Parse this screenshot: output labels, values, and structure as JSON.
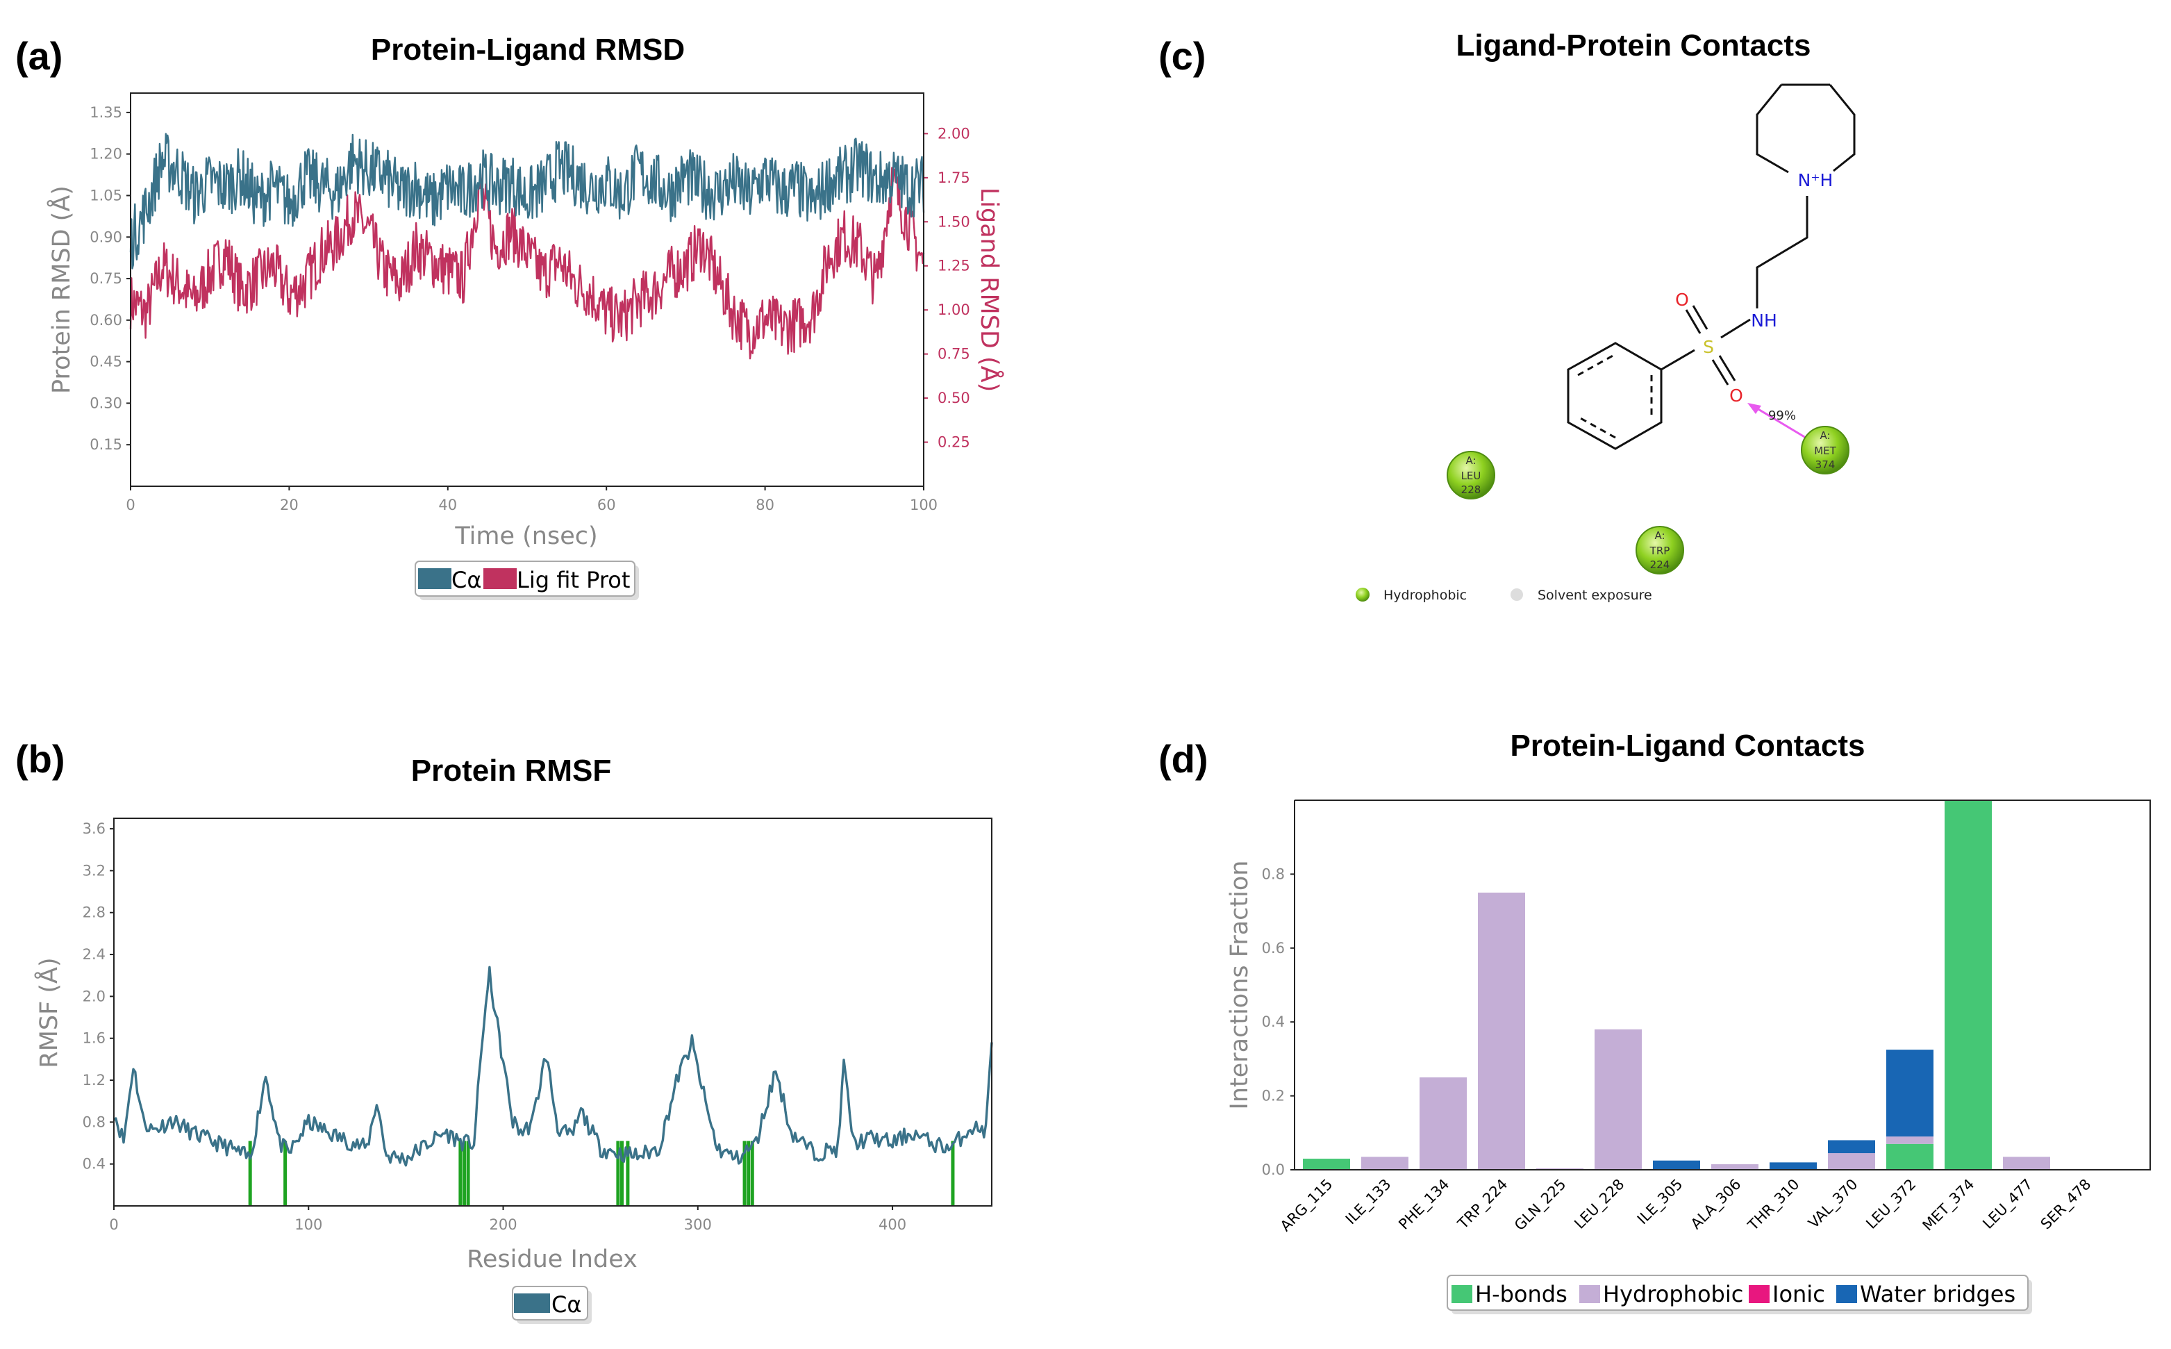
{
  "colors": {
    "ca": "#3a7289",
    "lig": "#c0325f",
    "hbond": "#45c775",
    "hydrophobic": "#c4aed6",
    "ionic": "#e8177f",
    "water": "#1866b4",
    "rmsf_marker": "#1ea321",
    "hydrophobic_dot": "#8fd121",
    "salt_arrow": "#e85aef",
    "n_atom": "#1a1ad6",
    "o_atom": "#e8242a",
    "s_atom": "#c9c22b"
  },
  "panels": {
    "a": "(a)",
    "b": "(b)",
    "c": "(c)",
    "d": "(d)"
  },
  "chart_data": [
    {
      "id": "a",
      "type": "line",
      "title": "Protein-Ligand RMSD",
      "xlabel": "Time (nsec)",
      "ylabel": "Protein RMSD (Å)",
      "y2label": "Ligand RMSD (Å)",
      "xlim": [
        0,
        100
      ],
      "ylim": [
        0,
        1.42
      ],
      "y2lim": [
        0,
        2.23
      ],
      "xticks": [
        0,
        20,
        40,
        60,
        80,
        100
      ],
      "yticks": [
        "0.15",
        "0.30",
        "0.45",
        "0.60",
        "0.75",
        "0.90",
        "1.05",
        "1.20",
        "1.35"
      ],
      "y2ticks": [
        "0.25",
        "0.50",
        "0.75",
        "1.00",
        "1.25",
        "1.50",
        "1.75",
        "2.00"
      ],
      "legend": [
        "Cα",
        "Lig fit Prot"
      ],
      "series": [
        {
          "name": "Cα",
          "axis": "left",
          "x": [
            0,
            2,
            4,
            6,
            8,
            10,
            12,
            14,
            16,
            18,
            20,
            22,
            24,
            26,
            28,
            30,
            32,
            34,
            36,
            38,
            40,
            42,
            44,
            46,
            48,
            50,
            52,
            54,
            56,
            58,
            60,
            62,
            64,
            66,
            68,
            70,
            72,
            74,
            76,
            78,
            80,
            82,
            84,
            86,
            88,
            90,
            92,
            94,
            96,
            98,
            100
          ],
          "values": [
            0.88,
            1.0,
            1.18,
            1.14,
            1.05,
            1.1,
            1.08,
            1.12,
            1.03,
            1.08,
            1.02,
            1.12,
            1.09,
            1.06,
            1.18,
            1.14,
            1.12,
            1.06,
            1.09,
            1.02,
            1.08,
            1.05,
            1.12,
            1.08,
            1.1,
            1.04,
            1.08,
            1.15,
            1.12,
            1.08,
            1.1,
            1.05,
            1.14,
            1.1,
            1.06,
            1.12,
            1.08,
            1.06,
            1.1,
            1.05,
            1.12,
            1.06,
            1.08,
            1.02,
            1.1,
            1.12,
            1.16,
            1.1,
            1.12,
            1.08,
            1.09
          ]
        },
        {
          "name": "Lig fit Prot",
          "axis": "right",
          "x": [
            0,
            2,
            4,
            6,
            8,
            10,
            12,
            14,
            16,
            18,
            20,
            22,
            24,
            26,
            28,
            30,
            32,
            34,
            36,
            38,
            40,
            42,
            44,
            46,
            48,
            50,
            52,
            54,
            56,
            58,
            60,
            62,
            64,
            66,
            68,
            70,
            72,
            74,
            76,
            78,
            80,
            82,
            84,
            86,
            88,
            90,
            92,
            94,
            96,
            98,
            100
          ],
          "values": [
            1.05,
            0.98,
            1.25,
            1.15,
            1.05,
            1.2,
            1.32,
            1.1,
            1.18,
            1.25,
            1.08,
            1.15,
            1.32,
            1.38,
            1.55,
            1.45,
            1.22,
            1.15,
            1.35,
            1.28,
            1.22,
            1.18,
            1.7,
            1.35,
            1.45,
            1.32,
            1.2,
            1.28,
            1.15,
            1.1,
            0.98,
            0.95,
            1.05,
            1.1,
            1.2,
            1.25,
            1.38,
            1.18,
            0.98,
            0.88,
            0.95,
            0.9,
            0.92,
            0.98,
            1.3,
            1.42,
            1.35,
            1.15,
            1.72,
            1.5,
            1.25
          ]
        }
      ]
    },
    {
      "id": "b",
      "type": "line",
      "title": "Protein RMSF",
      "xlabel": "Residue Index",
      "ylabel": "RMSF (Å)",
      "xlim": [
        0,
        451
      ],
      "ylim": [
        0,
        3.7
      ],
      "xticks": [
        0,
        100,
        200,
        300,
        400
      ],
      "yticks": [
        "0.4",
        "0.8",
        "1.2",
        "1.6",
        "2.0",
        "2.4",
        "2.8",
        "3.2",
        "3.6"
      ],
      "legend": [
        "Cα"
      ],
      "series": [
        {
          "name": "Cα",
          "x": [
            0,
            5,
            10,
            15,
            20,
            30,
            40,
            50,
            60,
            70,
            78,
            85,
            90,
            100,
            110,
            120,
            130,
            135,
            140,
            150,
            160,
            170,
            180,
            185,
            190,
            193,
            198,
            205,
            210,
            215,
            222,
            228,
            235,
            240,
            250,
            260,
            270,
            280,
            290,
            297,
            305,
            310,
            320,
            330,
            340,
            348,
            360,
            372,
            375,
            380,
            390,
            400,
            410,
            420,
            430,
            440,
            448,
            451
          ],
          "values": [
            0.9,
            0.62,
            1.35,
            0.82,
            0.72,
            0.82,
            0.7,
            0.62,
            0.55,
            0.45,
            1.25,
            0.6,
            0.5,
            0.8,
            0.7,
            0.62,
            0.55,
            1.0,
            0.48,
            0.45,
            0.58,
            0.7,
            0.6,
            0.6,
            1.75,
            2.2,
            1.6,
            0.8,
            0.7,
            0.8,
            1.45,
            0.75,
            0.65,
            0.9,
            0.55,
            0.5,
            0.48,
            0.55,
            1.25,
            1.55,
            0.9,
            0.55,
            0.45,
            0.6,
            1.3,
            0.7,
            0.5,
            0.55,
            1.35,
            0.6,
            0.65,
            0.6,
            0.7,
            0.6,
            0.55,
            0.75,
            0.72,
            1.58
          ]
        }
      ],
      "contact_residues": [
        70,
        88,
        178,
        180,
        182,
        259,
        261,
        264,
        324,
        326,
        328,
        431
      ]
    },
    {
      "id": "d",
      "type": "bar",
      "title": "Protein-Ligand Contacts",
      "ylabel": "Interactions Fraction",
      "ylim": [
        0,
        1.0
      ],
      "yticks": [
        "0.0",
        "0.2",
        "0.4",
        "0.6",
        "0.8"
      ],
      "categories": [
        "ARG_115",
        "ILE_133",
        "PHE_134",
        "TRP_224",
        "GLN_225",
        "LEU_228",
        "ILE_305",
        "ALA_306",
        "THR_310",
        "VAL_370",
        "LEU_372",
        "MET_374",
        "LEU_477",
        "SER_478"
      ],
      "series": [
        {
          "name": "H-bonds",
          "values": [
            0.03,
            0,
            0,
            0,
            0,
            0,
            0,
            0,
            0,
            0,
            0.07,
            1.0,
            0,
            0
          ]
        },
        {
          "name": "Hydrophobic",
          "values": [
            0,
            0.035,
            0.25,
            0.75,
            0.004,
            0.38,
            0,
            0.015,
            0,
            0.045,
            0.02,
            0,
            0.035,
            0
          ]
        },
        {
          "name": "Ionic",
          "values": [
            0,
            0,
            0,
            0,
            0,
            0,
            0,
            0,
            0,
            0,
            0,
            0,
            0,
            0
          ]
        },
        {
          "name": "Water bridges",
          "values": [
            0,
            0,
            0,
            0,
            0,
            0,
            0.025,
            0,
            0.02,
            0.035,
            0.235,
            0,
            0,
            0
          ]
        }
      ],
      "legend": [
        "H-bonds",
        "Hydrophobic",
        "Ionic",
        "Water bridges"
      ]
    }
  ],
  "diagram": {
    "title": "Ligand-Protein Contacts",
    "atoms": {
      "n_plus": "N⁺H",
      "nh": "NH",
      "s": "S",
      "o_top": "O",
      "o_bottom": "O"
    },
    "interaction_pct": "99%",
    "residues": [
      {
        "chain": "A:",
        "name": "LEU",
        "num": "228"
      },
      {
        "chain": "A:",
        "name": "TRP",
        "num": "224"
      },
      {
        "chain": "A:",
        "name": "MET",
        "num": "374"
      }
    ],
    "legend": [
      "Hydrophobic",
      "Solvent exposure"
    ]
  }
}
